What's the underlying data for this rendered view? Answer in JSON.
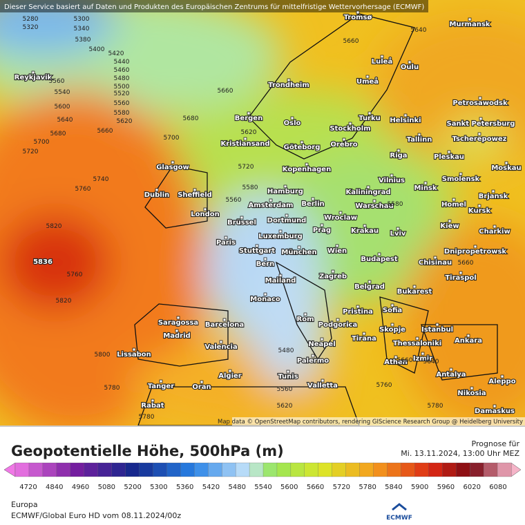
{
  "header": {
    "notice": "Dieser Service basiert auf Daten und Produkten des Europäischen Zentrums für mittelfristige Wettervorhersage (ECMWF)"
  },
  "map": {
    "attribution": "Map data © OpenStreetMap contributors, rendering GIScience Research Group @ Heidelberg University",
    "cities": [
      "Reykjavik",
      "Tromsø",
      "Murmansk",
      "Luleå",
      "Oulu",
      "Umeå",
      "Trondheim",
      "Petrosawodsk",
      "Bergen",
      "Turku",
      "Helsinki",
      "Sankt Petersburg",
      "Oslo",
      "Stockholm",
      "Tscherepowez",
      "Kristiansand",
      "Göteborg",
      "Orebro",
      "Tallinn",
      "Riga",
      "Pleskau",
      "Glasgow",
      "Kopenhagen",
      "Moskau",
      "Vilnius",
      "Smolensk",
      "Minsk",
      "Hamburg",
      "Kaliningrad",
      "Dublin",
      "Sheffield",
      "Brjansk",
      "Berlin",
      "Warschau",
      "Amsterdam",
      "Homel",
      "London",
      "Kursk",
      "Brüssel",
      "Dortmund",
      "Wroclaw",
      "Krakau",
      "Kiew",
      "Charkiw",
      "Prag",
      "Luxemburg",
      "Lviv",
      "Paris",
      "Stuttgart",
      "München",
      "Wien",
      "Dnipropetrowsk",
      "Chisinau",
      "Budapest",
      "Bern",
      "Mailand",
      "Zagreb",
      "Tiraspol",
      "Belgrad",
      "Bukarest",
      "Monaco",
      "Pristina",
      "Sofia",
      "Rom",
      "Podgorica",
      "Saragossa",
      "Barcelona",
      "Madrid",
      "Skopje",
      "Istanbul",
      "Tirana",
      "Ankara",
      "Neapel",
      "Thessaloniki",
      "Valencia",
      "Lissabon",
      "Izmir",
      "Athen",
      "Palermo",
      "Algier",
      "Tunis",
      "Antalya",
      "Aleppo",
      "Valletta",
      "Tanger",
      "Oran",
      "Nikosia",
      "Rabat",
      "Damaskus"
    ],
    "contour_labels": [
      "5836",
      "5820",
      "5820",
      "5800",
      "5780",
      "5760",
      "5740",
      "5720",
      "5700",
      "5680",
      "5660",
      "5640",
      "5620",
      "5600",
      "5580",
      "5560",
      "5540",
      "5520",
      "5500",
      "5480",
      "5460",
      "5440",
      "5420",
      "5400",
      "5380",
      "5340",
      "5300",
      "5280",
      "5320",
      "5560",
      "5620",
      "5640",
      "5660",
      "5680",
      "5580",
      "5480",
      "5560",
      "5620",
      "5640",
      "5660",
      "5700",
      "5720",
      "5760",
      "5780",
      "5660",
      "5560",
      "5580",
      "5660",
      "5780",
      "5760"
    ]
  },
  "legend": {
    "title": "Geopotentielle Höhe, 500hPa (m)",
    "ticks": [
      "4720",
      "4840",
      "4960",
      "5080",
      "5200",
      "5300",
      "5360",
      "5420",
      "5480",
      "5540",
      "5600",
      "5660",
      "5720",
      "5780",
      "5840",
      "5900",
      "5960",
      "6020",
      "6080"
    ],
    "forecast_label": "Prognose für",
    "forecast_time": "Mi. 13.11.2024, 13:00 Uhr MEZ"
  },
  "footer": {
    "region": "Europa",
    "model": "ECMWF/Global Euro HD vom  08.11.2024/00z",
    "logo": "ECMWF"
  }
}
